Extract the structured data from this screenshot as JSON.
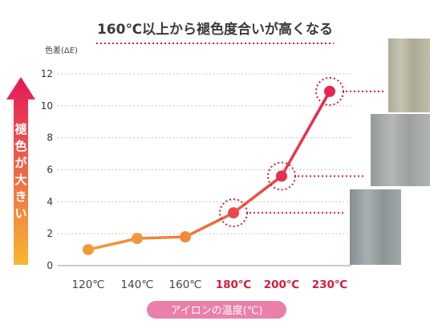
{
  "chart_data": {
    "type": "line",
    "title": "160℃以上から褪色度合いが高くなる",
    "ylabel": "色差(ΔE)",
    "xlabel": "アイロンの温度(℃)",
    "side_label": [
      "褪",
      "色",
      "が",
      "大",
      "き",
      "い"
    ],
    "categories": [
      "120℃",
      "140℃",
      "160℃",
      "180℃",
      "200℃",
      "230℃"
    ],
    "highlighted_categories": [
      "180℃",
      "200℃",
      "230℃"
    ],
    "values": [
      1.0,
      1.7,
      1.8,
      3.3,
      5.6,
      10.9
    ],
    "highlighted_points": [
      3,
      4,
      5
    ],
    "ylim": [
      0,
      12
    ],
    "yticks": [
      0,
      2,
      4,
      6,
      8,
      10,
      12
    ],
    "grid": true,
    "colors": {
      "low_line": "#f29a37",
      "high_line": "#e8234f",
      "highlight_ring": "#d81c3c",
      "arrow_top": "#e5185a",
      "arrow_bottom": "#f7b733",
      "xlabel_pill": "#e97faa",
      "hair_swatch_1": "#b3b29d",
      "hair_swatch_2": "#9ea1a1",
      "hair_swatch_3": "#8c9797"
    }
  }
}
